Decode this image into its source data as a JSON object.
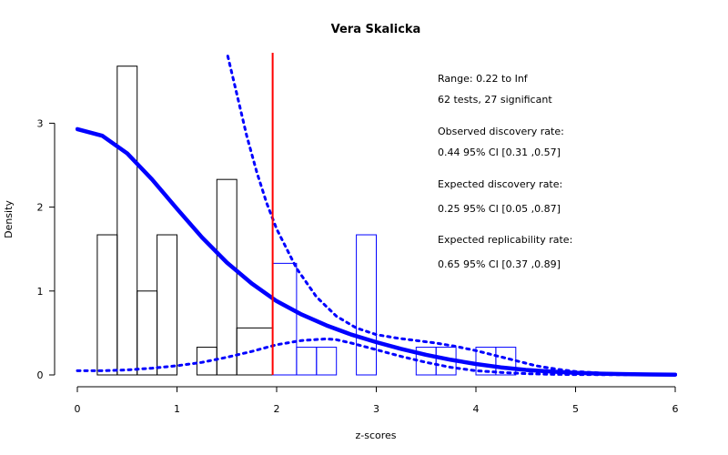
{
  "chart_data": {
    "type": "histogram",
    "title": "Vera Skalicka",
    "xlabel": "z-scores",
    "ylabel": "Density",
    "xlim": [
      0,
      6
    ],
    "ylim": [
      0,
      3.8
    ],
    "x_ticks": [
      "0",
      "1",
      "2",
      "3",
      "4",
      "5",
      "6"
    ],
    "y_ticks": [
      "0",
      "1",
      "2",
      "3"
    ],
    "threshold_z": 1.96,
    "bins_nonsignificant": [
      {
        "x0": 0.2,
        "x1": 0.4,
        "density": 1.67
      },
      {
        "x0": 0.4,
        "x1": 0.6,
        "density": 3.68
      },
      {
        "x0": 0.6,
        "x1": 0.8,
        "density": 1.0
      },
      {
        "x0": 0.8,
        "x1": 1.0,
        "density": 1.67
      },
      {
        "x0": 1.2,
        "x1": 1.4,
        "density": 0.33
      },
      {
        "x0": 1.4,
        "x1": 1.6,
        "density": 2.33
      },
      {
        "x0": 1.6,
        "x1": 1.96,
        "density": 0.56
      }
    ],
    "bins_significant": [
      {
        "x0": 1.96,
        "x1": 2.2,
        "density": 1.33
      },
      {
        "x0": 2.2,
        "x1": 2.4,
        "density": 0.33
      },
      {
        "x0": 2.4,
        "x1": 2.6,
        "density": 0.33
      },
      {
        "x0": 2.8,
        "x1": 3.0,
        "density": 1.67
      },
      {
        "x0": 3.4,
        "x1": 3.6,
        "density": 0.33
      },
      {
        "x0": 3.6,
        "x1": 3.8,
        "density": 0.33
      },
      {
        "x0": 4.0,
        "x1": 4.2,
        "density": 0.33
      },
      {
        "x0": 4.2,
        "x1": 4.4,
        "density": 0.33
      }
    ],
    "series": [
      {
        "style": "solid-thick",
        "x": [
          0,
          0.25,
          0.5,
          0.75,
          1.0,
          1.25,
          1.5,
          1.75,
          2.0,
          2.25,
          2.5,
          2.75,
          3.0,
          3.25,
          3.5,
          3.75,
          4.0,
          4.25,
          4.5,
          4.75,
          5.0,
          5.25,
          5.5,
          5.75,
          6.0
        ],
        "y": [
          2.93,
          2.85,
          2.64,
          2.33,
          1.98,
          1.64,
          1.34,
          1.09,
          0.88,
          0.72,
          0.59,
          0.48,
          0.39,
          0.31,
          0.24,
          0.18,
          0.13,
          0.09,
          0.06,
          0.04,
          0.025,
          0.015,
          0.01,
          0.005,
          0.003
        ]
      },
      {
        "style": "dotted-upper",
        "x": [
          1.51,
          1.6,
          1.7,
          1.8,
          1.9,
          2.0,
          2.2,
          2.4,
          2.6,
          2.8,
          3.0,
          3.2,
          3.4,
          3.6,
          3.8,
          4.0,
          4.2,
          4.4,
          4.6,
          4.8,
          5.0,
          5.3,
          5.6,
          6.0
        ],
        "y": [
          3.8,
          3.35,
          2.85,
          2.42,
          2.05,
          1.74,
          1.27,
          0.93,
          0.7,
          0.56,
          0.48,
          0.44,
          0.41,
          0.38,
          0.34,
          0.29,
          0.23,
          0.17,
          0.11,
          0.07,
          0.04,
          0.02,
          0.01,
          0.005
        ]
      },
      {
        "style": "dotted-lower",
        "x": [
          0,
          0.25,
          0.5,
          0.75,
          1.0,
          1.25,
          1.5,
          1.75,
          2.0,
          2.25,
          2.5,
          2.6,
          2.75,
          3.0,
          3.25,
          3.5,
          3.75,
          4.0,
          4.25,
          4.5,
          4.75,
          5.0,
          5.5,
          6.0
        ],
        "y": [
          0.05,
          0.05,
          0.06,
          0.08,
          0.11,
          0.15,
          0.21,
          0.28,
          0.36,
          0.41,
          0.43,
          0.42,
          0.38,
          0.3,
          0.22,
          0.15,
          0.09,
          0.05,
          0.03,
          0.015,
          0.008,
          0.004,
          0.002,
          0.001
        ]
      }
    ],
    "annotations": [
      "Range: 0.22 to Inf",
      "62 tests, 27 significant",
      "Observed discovery rate:",
      "0.44  95% CI [0.31 ,0.57]",
      "Expected discovery rate:",
      "0.25  95% CI [0.05 ,0.87]",
      "Expected replicability rate:",
      "0.65  95% CI [0.37 ,0.89]"
    ],
    "colors": {
      "nonsignificant_bars": "#000000",
      "significant_bars": "#0000ff",
      "curves": "#0000ff",
      "threshold": "#ff0000"
    }
  }
}
